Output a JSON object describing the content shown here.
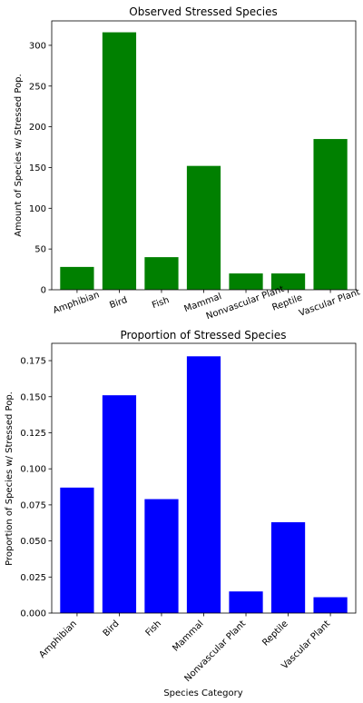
{
  "chart_data": [
    {
      "type": "bar",
      "title": "Observed Stressed Species",
      "xlabel": "",
      "ylabel": "Amount of Species w/ Stressed Pop.",
      "categories": [
        "Amphibian",
        "Bird",
        "Fish",
        "Mammal",
        "Nonvascular Plant",
        "Reptile",
        "Vascular Plant"
      ],
      "values": [
        28,
        316,
        40,
        152,
        20,
        20,
        185
      ],
      "ylim": [
        0,
        330
      ],
      "yticks": [
        "0",
        "50",
        "100",
        "150",
        "200",
        "250",
        "300"
      ],
      "color": "#008000",
      "grid": false
    },
    {
      "type": "bar",
      "title": "Proportion of Stressed Species",
      "xlabel": "Species Category",
      "ylabel": "Proportion of Species w/ Stressed Pop.",
      "categories": [
        "Amphibian",
        "Bird",
        "Fish",
        "Mammal",
        "Nonvascular Plant",
        "Reptile",
        "Vascular Plant"
      ],
      "values": [
        0.087,
        0.151,
        0.079,
        0.178,
        0.015,
        0.063,
        0.011
      ],
      "ylim": [
        0,
        0.187
      ],
      "yticks": [
        "0.000",
        "0.025",
        "0.050",
        "0.075",
        "0.100",
        "0.125",
        "0.150",
        "0.175"
      ],
      "color": "#0000ff",
      "grid": false
    }
  ]
}
